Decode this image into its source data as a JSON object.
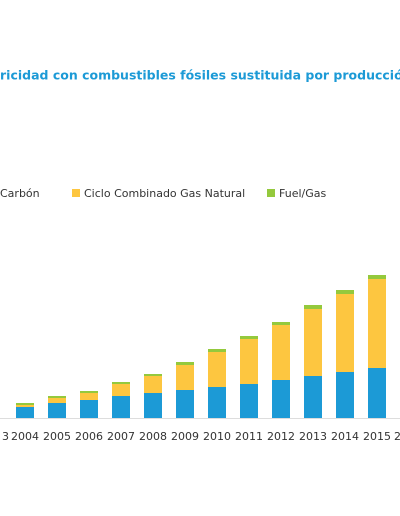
{
  "chart_data": {
    "type": "bar",
    "stacked": true,
    "title": "ricidad con combustibles fósiles sustituida por producción",
    "categories": [
      "3",
      "2004",
      "2005",
      "2006",
      "2007",
      "2008",
      "2009",
      "2010",
      "2011",
      "2012",
      "2013",
      "2014",
      "2015",
      "2"
    ],
    "series": [
      {
        "name": "Carbón",
        "color": "#1c9ad6",
        "values": [
          null,
          11,
          15,
          18,
          22,
          25,
          28,
          31,
          34,
          38,
          42,
          46,
          50,
          null
        ]
      },
      {
        "name": "Ciclo Combinado Gas Natural",
        "color": "#fdc640",
        "values": [
          null,
          2,
          5,
          7,
          12,
          17,
          25,
          35,
          45,
          55,
          67,
          78,
          89,
          null
        ]
      },
      {
        "name": "Fuel/Gas",
        "color": "#94c93d",
        "values": [
          null,
          2,
          2,
          2,
          2,
          2,
          3,
          3,
          3,
          3,
          4,
          4,
          4,
          null
        ]
      }
    ],
    "ylim": [
      0,
      150
    ]
  }
}
